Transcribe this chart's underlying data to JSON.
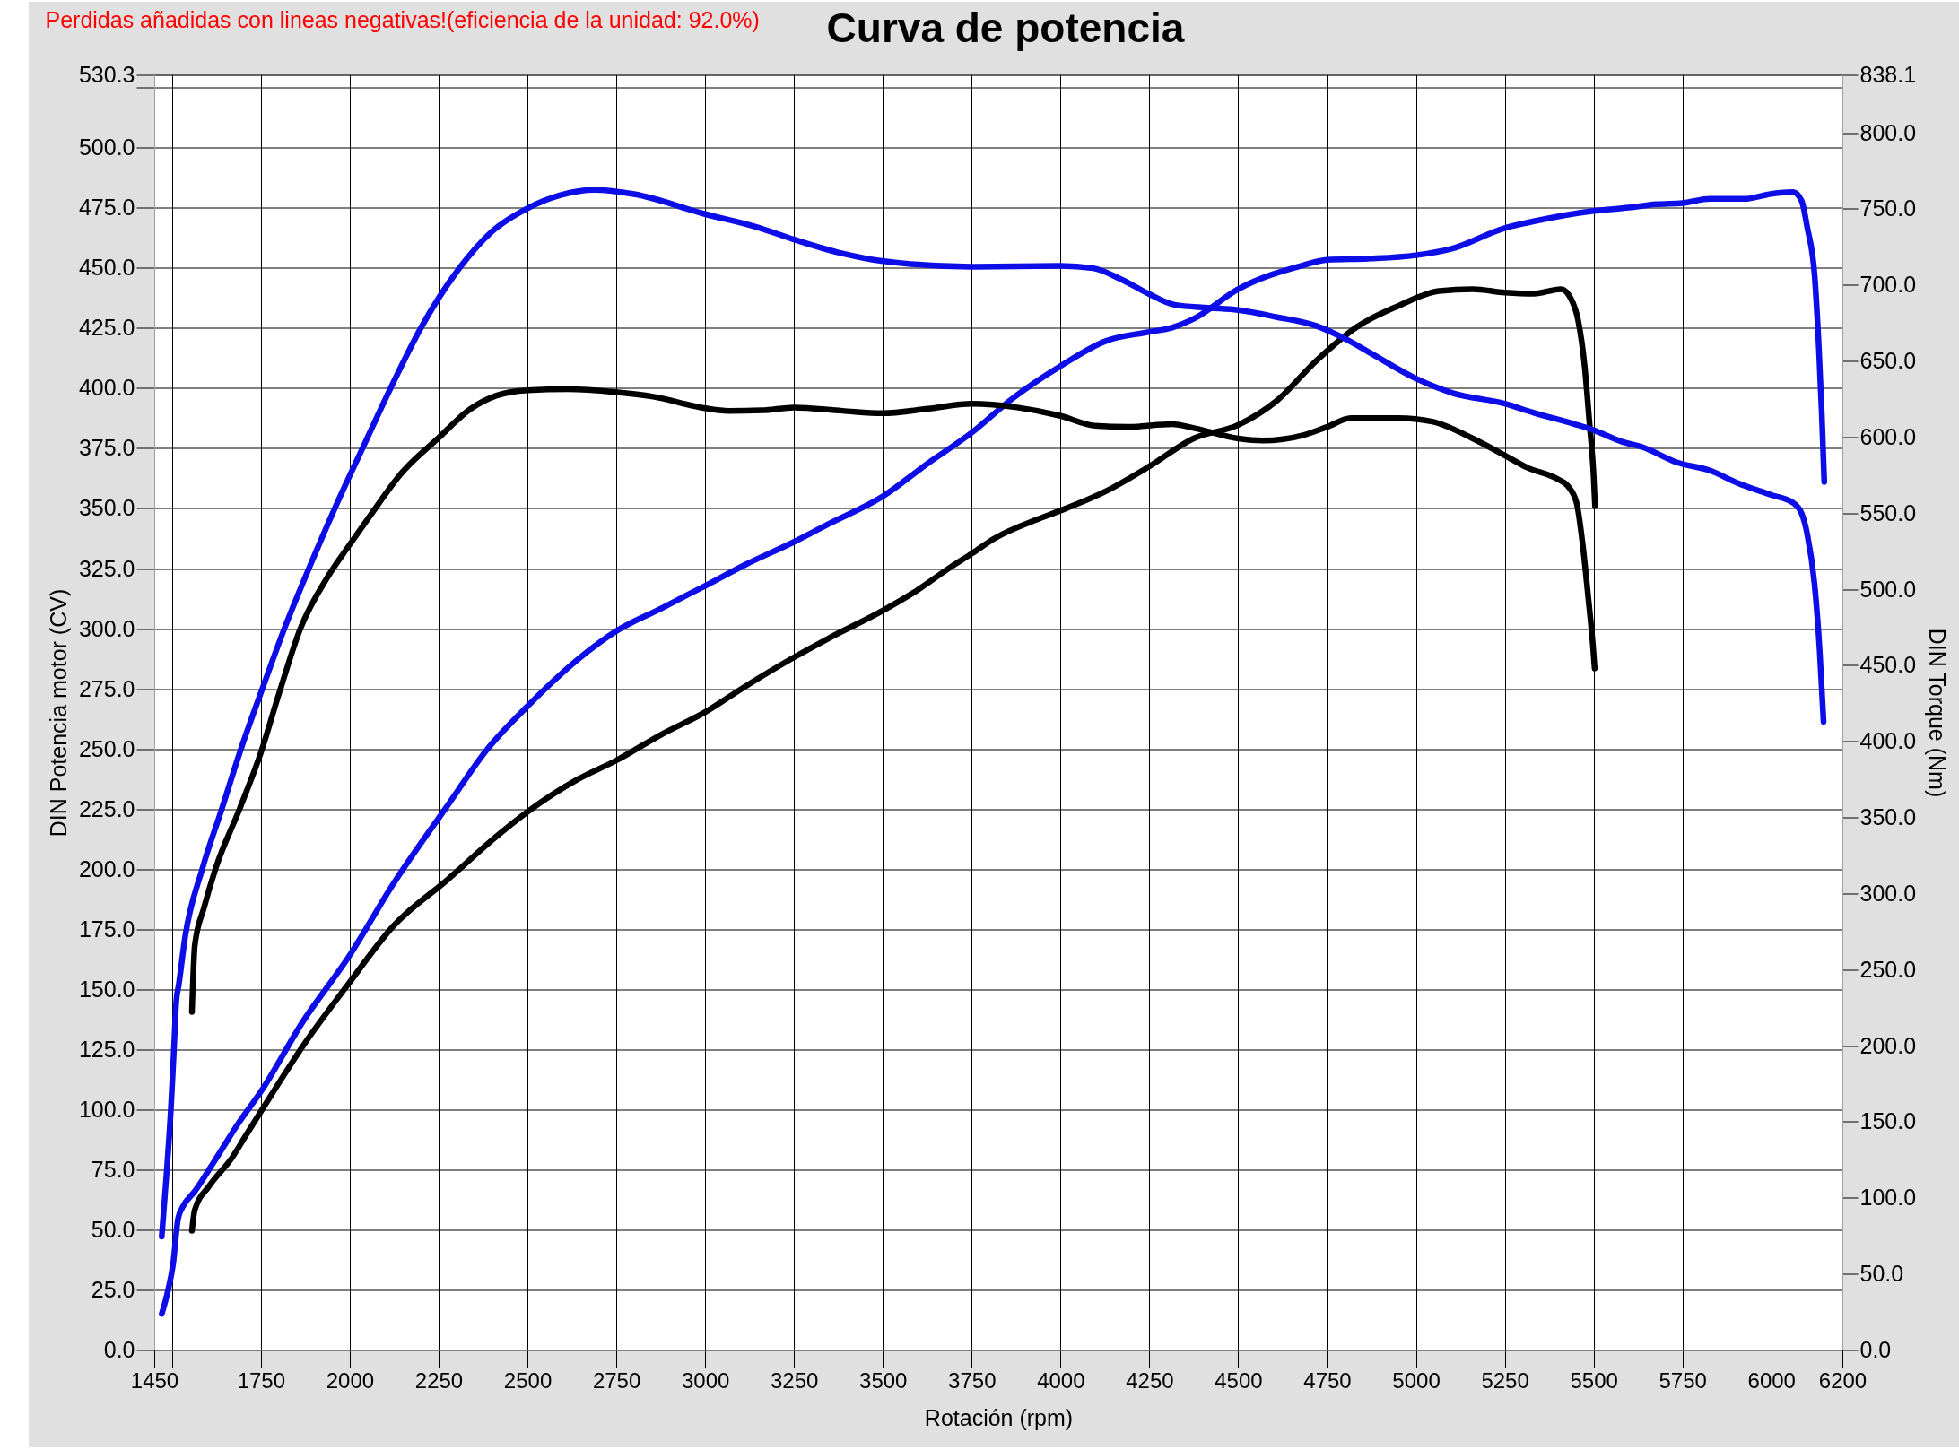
{
  "chart_data": {
    "type": "line",
    "title": "Curva de potencia",
    "xlabel": "Rotación (rpm)",
    "ylabel": "DIN Potencia motor (CV)",
    "y2label": "DIN Torque (Nm)",
    "annotations": [
      "Perdidas añadidas con lineas negativas!(eficiencia de la unidad: 92.0%)"
    ],
    "xlim": [
      1450,
      6200
    ],
    "xticks": [
      1450,
      {
        "value": 1500,
        "label": null
      },
      1750,
      2000,
      2250,
      2500,
      2750,
      3000,
      3250,
      3500,
      3750,
      4000,
      4250,
      4500,
      4750,
      5000,
      5250,
      5500,
      5750,
      6000,
      6200
    ],
    "ylim": [
      0,
      530.3
    ],
    "yticks": [
      {
        "value": 0,
        "label": "0.0"
      },
      {
        "value": 25,
        "label": "25.0"
      },
      {
        "value": 50,
        "label": "50.0"
      },
      {
        "value": 75,
        "label": "75.0"
      },
      {
        "value": 100,
        "label": "100.0"
      },
      {
        "value": 125,
        "label": "125.0"
      },
      {
        "value": 150,
        "label": "150.0"
      },
      {
        "value": 175,
        "label": "175.0"
      },
      {
        "value": 200,
        "label": "200.0"
      },
      {
        "value": 225,
        "label": "225.0"
      },
      {
        "value": 250,
        "label": "250.0"
      },
      {
        "value": 275,
        "label": "275.0"
      },
      {
        "value": 300,
        "label": "300.0"
      },
      {
        "value": 325,
        "label": "325.0"
      },
      {
        "value": 350,
        "label": "350.0"
      },
      {
        "value": 375,
        "label": "375.0"
      },
      {
        "value": 400,
        "label": "400.0"
      },
      {
        "value": 425,
        "label": "425.0"
      },
      {
        "value": 450,
        "label": "450.0"
      },
      {
        "value": 475,
        "label": "475.0"
      },
      {
        "value": 500,
        "label": "500.0"
      },
      {
        "value": 525,
        "label": null
      },
      530.3
    ],
    "y2lim": [
      0,
      838.1
    ],
    "y2ticks": [
      {
        "value": 0,
        "label": "0.0"
      },
      {
        "value": 50,
        "label": "50.0"
      },
      {
        "value": 100,
        "label": "100.0"
      },
      {
        "value": 150,
        "label": "150.0"
      },
      {
        "value": 200,
        "label": "200.0"
      },
      {
        "value": 250,
        "label": "250.0"
      },
      {
        "value": 300,
        "label": "300.0"
      },
      {
        "value": 350,
        "label": "350.0"
      },
      {
        "value": 400,
        "label": "400.0"
      },
      {
        "value": 450,
        "label": "450.0"
      },
      {
        "value": 500,
        "label": "500.0"
      },
      {
        "value": 550,
        "label": "550.0"
      },
      {
        "value": 600,
        "label": "600.0"
      },
      {
        "value": 650,
        "label": "650.0"
      },
      {
        "value": 700,
        "label": "700.0"
      },
      {
        "value": 750,
        "label": "750.0"
      },
      {
        "value": 800,
        "label": "800.0"
      },
      838.1
    ],
    "grid": true,
    "series": [
      {
        "color": "#0d0de8",
        "axis": "y",
        "x": [
          1471,
          1489,
          1503,
          1517,
          1530,
          1564,
          1617,
          1684,
          1750,
          1870,
          1997,
          2122,
          2276,
          2385,
          2500,
          2640,
          2750,
          2876,
          3000,
          3113,
          3249,
          3347,
          3500,
          3628,
          3750,
          3862,
          4000,
          4127,
          4250,
          4314,
          4373,
          4500,
          4683,
          4750,
          4874,
          5000,
          5103,
          5250,
          5332,
          5500,
          5599,
          5676,
          5750,
          5828,
          5924,
          6000,
          6061,
          6085,
          6101,
          6122,
          6134,
          6142,
          6149
        ],
        "values": [
          15,
          25,
          35.8,
          54.7,
          59.5,
          66,
          78,
          93.7,
          107.5,
          137,
          163.5,
          193.7,
          226.6,
          249.5,
          267.7,
          287,
          299,
          308.4,
          317.8,
          326.6,
          336,
          343.5,
          355,
          368.9,
          381.5,
          395.4,
          409.2,
          419.6,
          423.4,
          425.2,
          428.7,
          441.2,
          451.1,
          453.4,
          453.9,
          455.3,
          458.1,
          466.6,
          469.4,
          473.7,
          475.1,
          476.5,
          477,
          478.7,
          478.7,
          480.8,
          481.5,
          478,
          467,
          446.6,
          416.2,
          389.5,
          361
        ]
      },
      {
        "color": "#0d0de8",
        "axis": "y2",
        "x": [
          1471,
          1484,
          1497,
          1505,
          1512,
          1519,
          1537,
          1585,
          1640,
          1694,
          1754,
          1816,
          1885,
          1958,
          2036,
          2115,
          2200,
          2309,
          2399,
          2500,
          2593,
          2690,
          2800,
          3000,
          3146,
          3250,
          3386,
          3492,
          3750,
          4000,
          4092,
          4168,
          4250,
          4321,
          4416,
          4500,
          4607,
          4721,
          4798,
          4874,
          5000,
          5103,
          5250,
          5332,
          5447,
          5500,
          5580,
          5637,
          5733,
          5828,
          5904,
          6000,
          6060,
          6085,
          6101,
          6122,
          6136,
          6147
        ],
        "values": [
          74.6,
          114,
          159.6,
          196,
          229.2,
          240.2,
          271.8,
          316.1,
          355.6,
          395.1,
          434.6,
          474.1,
          513.6,
          553.2,
          592.7,
          632.2,
          671.7,
          711.2,
          734.9,
          750.4,
          759.1,
          762.5,
          759.7,
          746.6,
          738,
          729.9,
          720.7,
          715.9,
          712,
          712.5,
          711,
          704,
          694,
          687,
          685,
          683.5,
          679,
          673,
          665,
          655,
          638.5,
          629,
          622,
          616,
          608.5,
          604.6,
          597,
          593.5,
          583.5,
          578,
          570,
          562,
          557,
          550,
          536.4,
          502.5,
          460.2,
          413
        ]
      },
      {
        "color": "#000000",
        "axis": "y",
        "x": [
          1556,
          1564,
          1604,
          1669,
          1710,
          1750,
          1870,
          1997,
          2122,
          2276,
          2412,
          2500,
          2640,
          2750,
          2876,
          3000,
          3113,
          3249,
          3349,
          3500,
          3596,
          3691,
          3750,
          3815,
          3939,
          4000,
          4127,
          4250,
          4373,
          4500,
          4607,
          4721,
          4836,
          4950,
          5065,
          5160,
          5250,
          5332,
          5408,
          5437,
          5456,
          5475,
          5488,
          5500,
          5504
        ],
        "values": [
          49.6,
          58.3,
          68.1,
          80,
          89.8,
          99.2,
          126.8,
          152.4,
          176.2,
          195.7,
          213.5,
          223.8,
          237.2,
          245.2,
          255.9,
          265.3,
          276,
          288,
          296.1,
          307.5,
          315.9,
          325.6,
          331.2,
          337.6,
          345.7,
          349.1,
          357.1,
          367.5,
          379,
          384.7,
          394.6,
          411.6,
          425.7,
          434.2,
          440.4,
          441.2,
          439.8,
          439.3,
          441.2,
          437,
          428.5,
          408.8,
          386.2,
          363.6,
          351
        ]
      },
      {
        "color": "#000000",
        "axis": "y2",
        "x": [
          1556,
          1564,
          1590,
          1622,
          1690,
          1750,
          1801,
          1861,
          1940,
          2000,
          2055,
          2145,
          2249,
          2339,
          2413,
          2500,
          2614,
          2747,
          2854,
          3000,
          3066,
          3160,
          3250,
          3386,
          3500,
          3628,
          3750,
          3878,
          4000,
          4096,
          4190,
          4314,
          4378,
          4500,
          4569,
          4683,
          4750,
          4817,
          4950,
          5046,
          5160,
          5250,
          5313,
          5399,
          5427,
          5452,
          5469,
          5485,
          5498,
          5503
        ],
        "values": [
          222.2,
          266,
          290.8,
          316.1,
          355.6,
          392.7,
          431.5,
          474.1,
          508.9,
          529.4,
          547.6,
          576.2,
          599.3,
          618.4,
          627.3,
          630.8,
          631.5,
          629.6,
          626.6,
          619,
          617.3,
          617.6,
          619.5,
          617.3,
          615.7,
          618.7,
          621.9,
          619.5,
          614,
          607.5,
          606.7,
          608.5,
          605.8,
          599.1,
          597.8,
          601.3,
          606.7,
          612.5,
          612.5,
          610.2,
          599.1,
          588,
          580,
          572.4,
          568,
          556.8,
          530,
          494.4,
          463.2,
          448
        ]
      }
    ]
  }
}
